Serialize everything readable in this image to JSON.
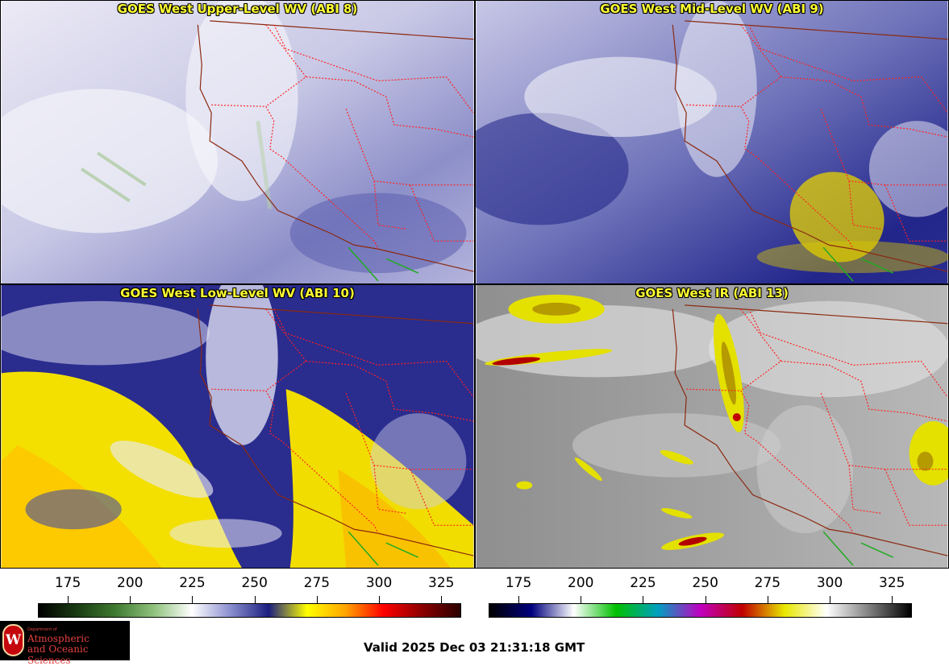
{
  "panels": [
    {
      "title": "GOES West Upper-Level WV (ABI 8)"
    },
    {
      "title": "GOES West Mid-Level WV (ABI 9)"
    },
    {
      "title": "GOES West Low-Level WV (ABI 10)"
    },
    {
      "title": "GOES West IR (ABI 13)"
    }
  ],
  "colorbar_left": {
    "ticks": [
      "175",
      "200",
      "225",
      "250",
      "275",
      "300",
      "325"
    ],
    "range": [
      163,
      333
    ],
    "stops": [
      "#000000",
      "#1a3b13",
      "#3f7a31",
      "#8fc27d",
      "#ffffff",
      "#8a8fcf",
      "#1b1e7f",
      "#ffff00",
      "#ffa500",
      "#ff0000",
      "#8b0000",
      "#2b0000"
    ]
  },
  "colorbar_right": {
    "ticks": [
      "175",
      "200",
      "225",
      "250",
      "275",
      "300",
      "325"
    ],
    "range": [
      163,
      333
    ],
    "stops": [
      "#000000",
      "#00007f",
      "#ffffff",
      "#00c000",
      "#00a0c0",
      "#c000c0",
      "#c00000",
      "#e8e800",
      "#ffffff",
      "#808080",
      "#000000"
    ]
  },
  "logo": {
    "department": "Department of",
    "line1": "Atmospheric",
    "line2": "and Oceanic Sciences",
    "seal_letter": "W"
  },
  "valid_text": "Valid 2025 Dec 03 21:31:18 GMT"
}
